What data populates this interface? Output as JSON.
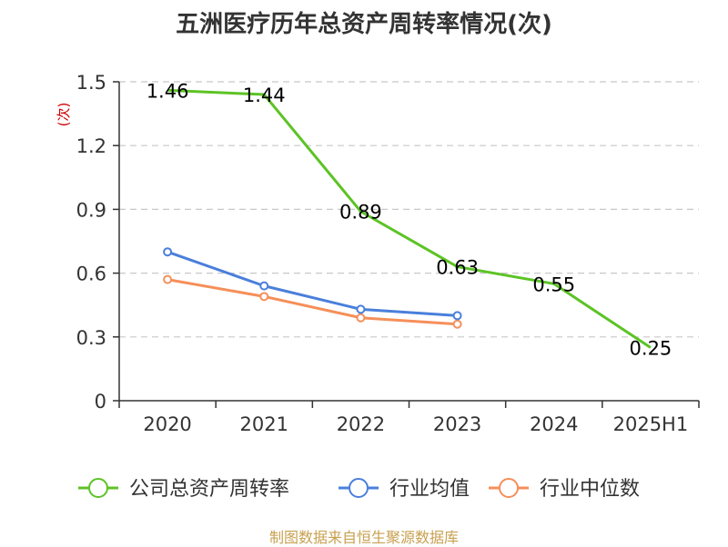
{
  "chart_data": {
    "type": "line",
    "title": "五洲医疗历年总资产周转率情况(次)",
    "ylabel": "(次)",
    "xlabel": "",
    "categories": [
      "2020",
      "2021",
      "2022",
      "2023",
      "2024",
      "2025H1"
    ],
    "y_ticks": [
      "0",
      "0.3",
      "0.6",
      "0.9",
      "1.2",
      "1.5"
    ],
    "ylim": [
      0,
      1.5
    ],
    "grid": true,
    "legend_position": "bottom",
    "series": [
      {
        "name": "公司总资产周转率",
        "color": "#5cc325",
        "values": [
          1.46,
          1.44,
          0.89,
          0.63,
          0.55,
          0.25
        ],
        "labels": [
          "1.46",
          "1.44",
          "0.89",
          "0.63",
          "0.55",
          "0.25"
        ]
      },
      {
        "name": "行业均值",
        "color": "#4a7fdb",
        "values": [
          0.7,
          0.54,
          0.43,
          0.4,
          null,
          null
        ]
      },
      {
        "name": "行业中位数",
        "color": "#f58f5a",
        "values": [
          0.57,
          0.49,
          0.39,
          0.36,
          null,
          null
        ]
      }
    ]
  },
  "footer": {
    "source": "制图数据来自恒生聚源数据库"
  }
}
